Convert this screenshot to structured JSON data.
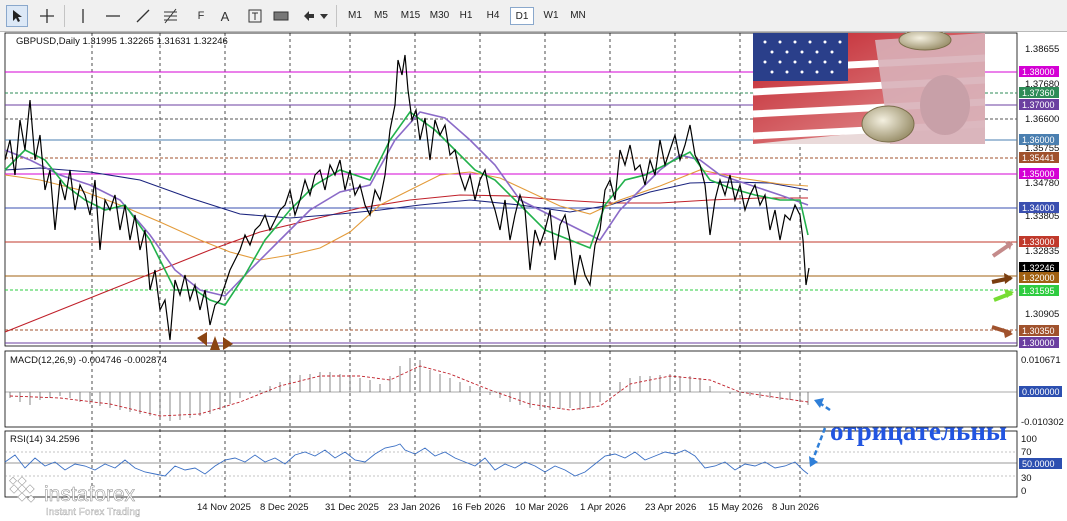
{
  "toolbar": {
    "timeframes": [
      "M1",
      "M5",
      "M15",
      "M30",
      "H1",
      "H4",
      "D1",
      "W1",
      "MN"
    ],
    "active_timeframe": "D1",
    "tools": [
      "cursor-icon",
      "crosshair-icon",
      "vertical-line-icon",
      "horizontal-line-icon",
      "trendline-icon",
      "fibonacci-icon",
      "text-icon",
      "text-label-icon",
      "rectangle-icon",
      "arrows-icon"
    ],
    "text_tool_label": "A",
    "fibo_label": "F"
  },
  "chart": {
    "symbol_info": "GBPUSD,Daily  1.31995 1.32265 1.31631 1.32246",
    "price_axis": [
      "1.38655",
      "1.37680",
      "1.36600",
      "1.35755",
      "1.34780",
      "1.33805",
      "1.32835",
      "1.30905"
    ],
    "price_tags": [
      {
        "label": "1.38000",
        "color": "#d400d4"
      },
      {
        "label": "1.37360",
        "color": "#2e8b57"
      },
      {
        "label": "1.37000",
        "color": "#6b3fa0"
      },
      {
        "label": "1.36000",
        "color": "#4a7fb0"
      },
      {
        "label": "1.35441",
        "color": "#a0522d"
      },
      {
        "label": "1.35000",
        "color": "#d400d4"
      },
      {
        "label": "1.34000",
        "color": "#3a4fb0"
      },
      {
        "label": "1.33000",
        "color": "#c0392b"
      },
      {
        "label": "1.32246",
        "color": "#000000"
      },
      {
        "label": "1.32000",
        "color": "#a06010"
      },
      {
        "label": "1.31595",
        "color": "#2ecc40"
      },
      {
        "label": "1.30350",
        "color": "#a0522d"
      },
      {
        "label": "1.30000",
        "color": "#6b3fa0"
      }
    ],
    "date_axis": [
      "14 Nov 2025",
      "8 Dec 2025",
      "31 Dec 2025",
      "23 Jan 2026",
      "16 Feb 2026",
      "10 Mar 2026",
      "1 Apr 2026",
      "23 Apr 2026",
      "15 May 2026",
      "8 Jun 2026"
    ]
  },
  "macd": {
    "label": "MACD(12,26,9) -0.004746 -0.002874",
    "axis": [
      "0.010671",
      "0.000000",
      "-0.010302"
    ]
  },
  "rsi": {
    "label": "RSI(14) 34.2596",
    "axis": [
      "100",
      "70",
      "50.0000",
      "30",
      "0"
    ]
  },
  "annotation": {
    "text": "отрицательны"
  },
  "logo": {
    "brand": "instaforex",
    "tagline": "Instant Forex Trading"
  }
}
